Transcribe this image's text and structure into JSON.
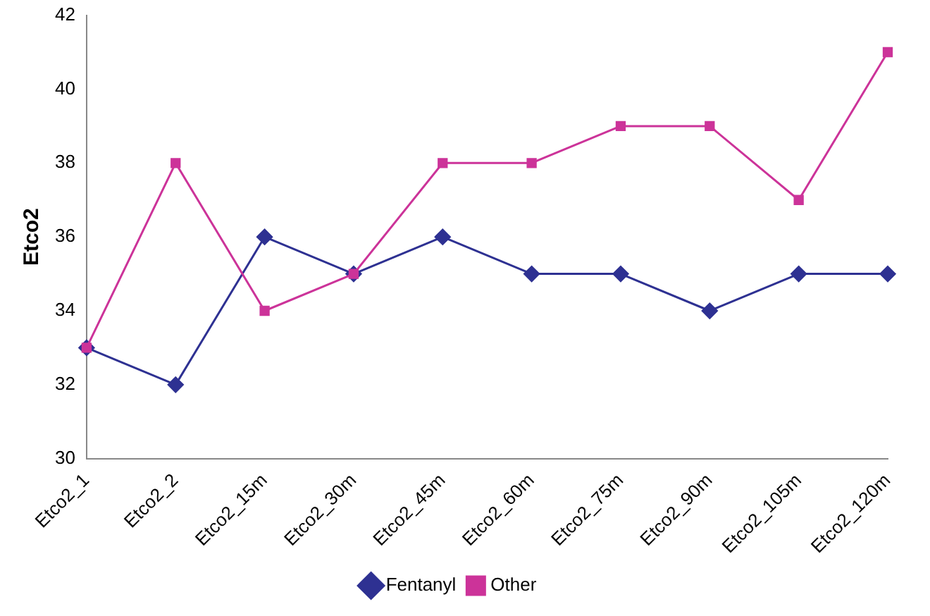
{
  "chart_data": {
    "type": "line",
    "ylabel": "Etco2",
    "categories": [
      "Etco2_1",
      "Etco2_2",
      "Etco2_15m",
      "Etco2_30m",
      "Etco2_45m",
      "Etco2_60m",
      "Etco2_75m",
      "Etco2_90m",
      "Etco2_105m",
      "Etco2_120m"
    ],
    "series": [
      {
        "name": "Fentanyl",
        "color": "#2e3192",
        "marker": "diamond",
        "values": [
          33,
          32,
          36,
          35,
          36,
          35,
          35,
          34,
          35,
          35
        ]
      },
      {
        "name": "Other",
        "color": "#cc3399",
        "marker": "square",
        "values": [
          33,
          38,
          34,
          35,
          38,
          38,
          39,
          39,
          37,
          41
        ]
      }
    ],
    "ylim": [
      30,
      42
    ],
    "yticks": [
      30,
      32,
      34,
      36,
      38,
      40,
      42
    ],
    "grid": false,
    "legend": "bottom",
    "line_style": "solid"
  }
}
